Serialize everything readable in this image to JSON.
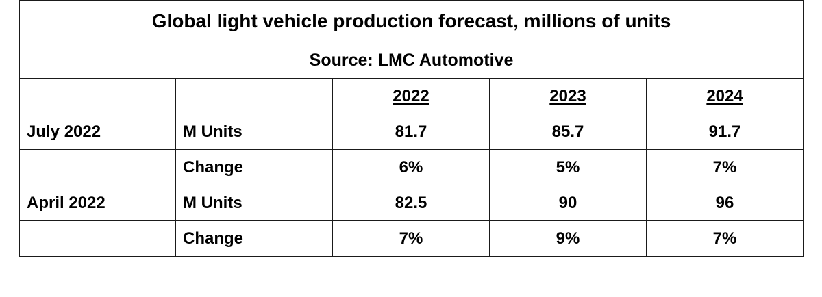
{
  "title": "Global light vehicle production forecast, millions of units",
  "source": "Source: LMC Automotive",
  "chart_data": {
    "type": "table",
    "title": "Global light vehicle production forecast, millions of units",
    "subtitle": "Source: LMC Automotive",
    "columns": [
      "2022",
      "2023",
      "2024"
    ],
    "rows": [
      {
        "forecast": "July 2022",
        "metric": "M Units",
        "values": [
          "81.7",
          "85.7",
          "91.7"
        ]
      },
      {
        "forecast": "",
        "metric": "Change",
        "values": [
          "6%",
          "5%",
          "7%"
        ]
      },
      {
        "forecast": "April 2022",
        "metric": "M Units",
        "values": [
          "82.5",
          "90",
          "96"
        ]
      },
      {
        "forecast": "",
        "metric": "Change",
        "values": [
          "7%",
          "9%",
          "7%"
        ]
      }
    ]
  }
}
